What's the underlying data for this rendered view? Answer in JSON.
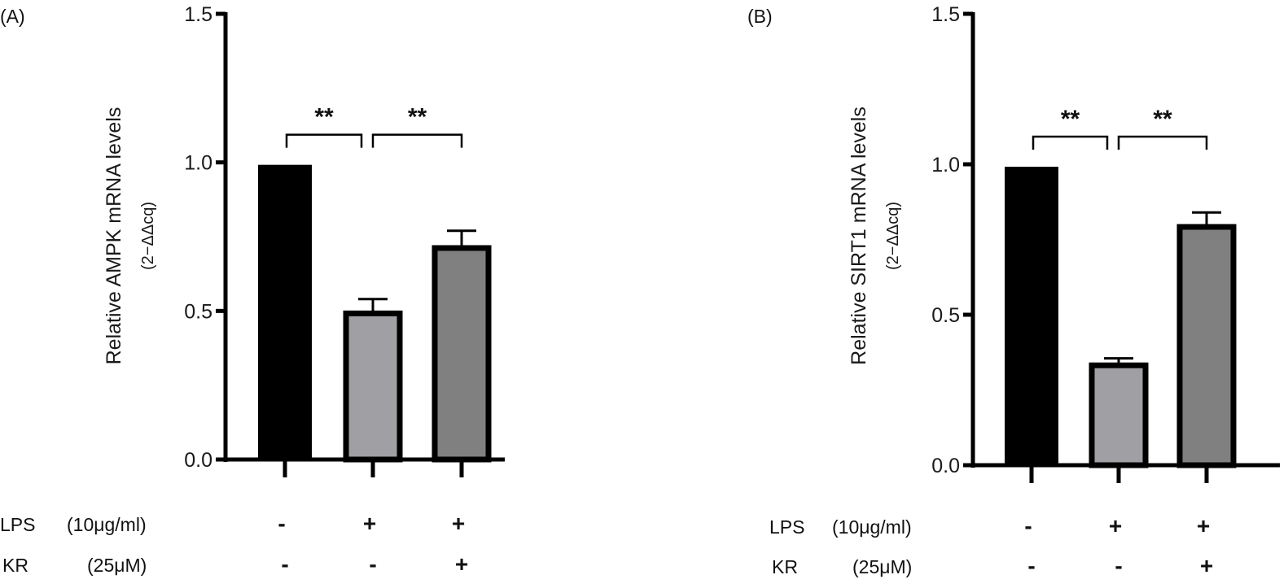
{
  "chart_data": [
    {
      "type": "bar",
      "panel_label": "(A)",
      "ylabel": "Relative AMPK mRNA levels",
      "ylabel_unit": "(2−ΔΔcq)",
      "ylim": [
        0,
        1.5
      ],
      "yticks": [
        "0.0",
        "0.5",
        "1.0",
        "1.5"
      ],
      "values": [
        1.0,
        0.5,
        0.72
      ],
      "errors": [
        0,
        0.04,
        0.05
      ],
      "colors": [
        "#000000",
        "#a0a0a4",
        "#808080"
      ],
      "significance": [
        {
          "from": 0,
          "to": 1,
          "label": "**"
        },
        {
          "from": 1,
          "to": 2,
          "label": "**"
        }
      ],
      "conditions": [
        {
          "label": "LPS",
          "dose": "(10μg/ml)",
          "values": [
            "-",
            "+",
            "+"
          ]
        },
        {
          "label": "KR",
          "dose": "(25μM)",
          "values": [
            "-",
            "-",
            "+"
          ]
        }
      ]
    },
    {
      "type": "bar",
      "panel_label": "(B)",
      "ylabel": "Relative SIRT1 mRNA levels",
      "ylabel_unit": "(2−ΔΔcq)",
      "ylim": [
        0,
        1.5
      ],
      "yticks": [
        "0.0",
        "0.5",
        "1.0",
        "1.5"
      ],
      "values": [
        1.0,
        0.34,
        0.8
      ],
      "errors": [
        0,
        0.015,
        0.04
      ],
      "colors": [
        "#000000",
        "#a0a0a4",
        "#808080"
      ],
      "significance": [
        {
          "from": 0,
          "to": 1,
          "label": "**"
        },
        {
          "from": 1,
          "to": 2,
          "label": "**"
        }
      ],
      "conditions": [
        {
          "label": "LPS",
          "dose": "(10μg/ml)",
          "values": [
            "-",
            "+",
            "+"
          ]
        },
        {
          "label": "KR",
          "dose": "(25μM)",
          "values": [
            "-",
            "-",
            "+"
          ]
        }
      ]
    }
  ]
}
